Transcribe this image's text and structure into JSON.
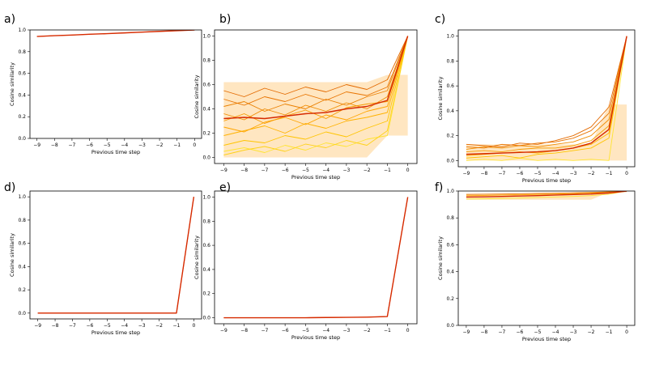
{
  "chart_data": [
    {
      "type": "line",
      "panel_label": "a)",
      "xlabel": "Previous time step",
      "ylabel": "Cosine similarity",
      "x": [
        -9,
        -8,
        -7,
        -6,
        -5,
        -4,
        -3,
        -2,
        -1,
        0
      ],
      "xticks": [
        -9,
        -8,
        -7,
        -6,
        -5,
        -4,
        -3,
        -2,
        -1,
        0
      ],
      "yticks": [
        0.0,
        0.2,
        0.4,
        0.6,
        0.8,
        1.0
      ],
      "ytick_labels": [
        "0.0",
        "0.2",
        "0.4",
        "0.6",
        "0.8",
        "1.0"
      ],
      "xlim": [
        -9.4,
        0.4
      ],
      "ylim": [
        0.0,
        1.0
      ],
      "band": null,
      "series": [
        {
          "values": [
            0.94,
            0.947,
            0.953,
            0.96,
            0.966,
            0.973,
            0.98,
            0.987,
            0.993,
            1.0
          ],
          "color": "#ff7f0e",
          "kind": "individual"
        },
        {
          "values": [
            0.94,
            0.947,
            0.953,
            0.96,
            0.966,
            0.973,
            0.98,
            0.987,
            0.993,
            1.0
          ],
          "color": "#d62a00",
          "kind": "mean"
        }
      ]
    },
    {
      "type": "line",
      "panel_label": "b)",
      "xlabel": "Previous time step",
      "ylabel": "Cosine similarity",
      "x": [
        -9,
        -8,
        -7,
        -6,
        -5,
        -4,
        -3,
        -2,
        -1,
        0
      ],
      "xticks": [
        -9,
        -8,
        -7,
        -6,
        -5,
        -4,
        -3,
        -2,
        -1,
        0
      ],
      "yticks": [
        0.0,
        0.2,
        0.4,
        0.6,
        0.8,
        1.0
      ],
      "ytick_labels": [
        "0.0",
        "0.2",
        "0.4",
        "0.6",
        "0.8",
        "1.0"
      ],
      "xlim": [
        -9.45,
        0.45
      ],
      "ylim": [
        -0.05,
        1.05
      ],
      "band": {
        "lo": 0.0,
        "hi": 0.62,
        "end_lo": 0.18,
        "end_hi": 0.68
      },
      "series": [
        {
          "values": [
            0.05,
            0.08,
            0.04,
            0.1,
            0.06,
            0.12,
            0.09,
            0.15,
            0.18,
            1.0
          ],
          "color": "#ffe433",
          "kind": "individual"
        },
        {
          "values": [
            0.02,
            0.06,
            0.09,
            0.05,
            0.11,
            0.08,
            0.14,
            0.1,
            0.22,
            1.0
          ],
          "color": "#ffd21a",
          "kind": "individual"
        },
        {
          "values": [
            0.1,
            0.14,
            0.12,
            0.18,
            0.15,
            0.21,
            0.17,
            0.24,
            0.3,
            1.0
          ],
          "color": "#ffc400",
          "kind": "individual"
        },
        {
          "values": [
            0.18,
            0.22,
            0.26,
            0.2,
            0.28,
            0.24,
            0.3,
            0.33,
            0.37,
            1.0
          ],
          "color": "#ffb200",
          "kind": "individual"
        },
        {
          "values": [
            0.25,
            0.21,
            0.29,
            0.33,
            0.27,
            0.35,
            0.31,
            0.38,
            0.42,
            1.0
          ],
          "color": "#ffa500",
          "kind": "individual"
        },
        {
          "values": [
            0.3,
            0.36,
            0.28,
            0.34,
            0.39,
            0.32,
            0.41,
            0.44,
            0.46,
            1.0
          ],
          "color": "#f59a00",
          "kind": "individual"
        },
        {
          "values": [
            0.36,
            0.31,
            0.4,
            0.35,
            0.43,
            0.38,
            0.45,
            0.4,
            0.5,
            1.0
          ],
          "color": "#f08c00",
          "kind": "individual"
        },
        {
          "values": [
            0.42,
            0.46,
            0.38,
            0.44,
            0.4,
            0.48,
            0.43,
            0.5,
            0.55,
            1.0
          ],
          "color": "#ea8000",
          "kind": "individual"
        },
        {
          "values": [
            0.48,
            0.43,
            0.5,
            0.46,
            0.52,
            0.47,
            0.54,
            0.51,
            0.58,
            1.0
          ],
          "color": "#e87400",
          "kind": "individual"
        },
        {
          "values": [
            0.55,
            0.5,
            0.57,
            0.52,
            0.58,
            0.54,
            0.6,
            0.56,
            0.64,
            1.0
          ],
          "color": "#e36a00",
          "kind": "individual"
        },
        {
          "values": [
            0.32,
            0.33,
            0.32,
            0.34,
            0.36,
            0.37,
            0.4,
            0.42,
            0.47,
            1.0
          ],
          "color": "#d62a00",
          "kind": "mean"
        }
      ]
    },
    {
      "type": "line",
      "panel_label": "c)",
      "xlabel": "Previous time step",
      "ylabel": "Cosine similarity",
      "x": [
        -9,
        -8,
        -7,
        -6,
        -5,
        -4,
        -3,
        -2,
        -1,
        0
      ],
      "xticks": [
        -9,
        -8,
        -7,
        -6,
        -5,
        -4,
        -3,
        -2,
        -1,
        0
      ],
      "yticks": [
        0.0,
        0.2,
        0.4,
        0.6,
        0.8,
        1.0
      ],
      "ytick_labels": [
        "0.0",
        "0.2",
        "0.4",
        "0.6",
        "0.8",
        "1.0"
      ],
      "xlim": [
        -9.45,
        0.45
      ],
      "ylim": [
        -0.05,
        1.05
      ],
      "band": {
        "lo": 0.0,
        "hi": 0.13,
        "end_lo": 0.0,
        "end_hi": 0.45
      },
      "series": [
        {
          "values": [
            0.0,
            0.01,
            0.0,
            0.02,
            0.0,
            0.01,
            0.0,
            0.01,
            0.0,
            1.0
          ],
          "color": "#ffe433",
          "kind": "individual"
        },
        {
          "values": [
            0.02,
            0.03,
            0.04,
            0.02,
            0.05,
            0.06,
            0.08,
            0.1,
            0.18,
            1.0
          ],
          "color": "#ffc400",
          "kind": "individual"
        },
        {
          "values": [
            0.04,
            0.05,
            0.06,
            0.07,
            0.06,
            0.08,
            0.1,
            0.13,
            0.22,
            1.0
          ],
          "color": "#ffb200",
          "kind": "individual"
        },
        {
          "values": [
            0.07,
            0.08,
            0.07,
            0.09,
            0.1,
            0.1,
            0.12,
            0.16,
            0.28,
            1.0
          ],
          "color": "#f59a00",
          "kind": "individual"
        },
        {
          "values": [
            0.09,
            0.11,
            0.1,
            0.12,
            0.11,
            0.13,
            0.15,
            0.2,
            0.33,
            1.0
          ],
          "color": "#f08c00",
          "kind": "individual"
        },
        {
          "values": [
            0.11,
            0.1,
            0.13,
            0.12,
            0.14,
            0.15,
            0.18,
            0.24,
            0.38,
            1.0
          ],
          "color": "#e87400",
          "kind": "individual"
        },
        {
          "values": [
            0.13,
            0.12,
            0.11,
            0.14,
            0.13,
            0.16,
            0.2,
            0.27,
            0.43,
            1.0
          ],
          "color": "#e36a00",
          "kind": "individual"
        },
        {
          "values": [
            0.05,
            0.055,
            0.06,
            0.065,
            0.07,
            0.08,
            0.1,
            0.14,
            0.25,
            1.0
          ],
          "color": "#d62a00",
          "kind": "mean"
        }
      ]
    },
    {
      "type": "line",
      "panel_label": "d)",
      "xlabel": "Previous time step",
      "ylabel": "Cosine similarity",
      "x": [
        -9,
        -8,
        -7,
        -6,
        -5,
        -4,
        -3,
        -2,
        -1,
        0
      ],
      "xticks": [
        -9,
        -8,
        -7,
        -6,
        -5,
        -4,
        -3,
        -2,
        -1,
        0
      ],
      "yticks": [
        0.0,
        0.2,
        0.4,
        0.6,
        0.8,
        1.0
      ],
      "ytick_labels": [
        "0.0",
        "0.2",
        "0.4",
        "0.6",
        "0.8",
        "1.0"
      ],
      "xlim": [
        -9.45,
        0.45
      ],
      "ylim": [
        -0.05,
        1.05
      ],
      "band": null,
      "series": [
        {
          "values": [
            0.0,
            0.0,
            0.0,
            0.0,
            0.0,
            0.0,
            0.0,
            0.0,
            0.0,
            1.0
          ],
          "color": "#ff7f0e",
          "kind": "individual"
        },
        {
          "values": [
            0.0,
            0.0,
            0.0,
            0.0,
            0.0,
            0.0,
            0.0,
            0.0,
            0.0,
            1.0
          ],
          "color": "#d62a00",
          "kind": "mean"
        }
      ]
    },
    {
      "type": "line",
      "panel_label": "e)",
      "xlabel": "Previous time step",
      "ylabel": "Cosine similarity",
      "x": [
        -9,
        -8,
        -7,
        -6,
        -5,
        -4,
        -3,
        -2,
        -1,
        0
      ],
      "xticks": [
        -9,
        -8,
        -7,
        -6,
        -5,
        -4,
        -3,
        -2,
        -1,
        0
      ],
      "yticks": [
        0.0,
        0.2,
        0.4,
        0.6,
        0.8,
        1.0
      ],
      "ytick_labels": [
        "0.0",
        "0.2",
        "0.4",
        "0.6",
        "0.8",
        "1.0"
      ],
      "xlim": [
        -9.45,
        0.45
      ],
      "ylim": [
        -0.05,
        1.05
      ],
      "band": null,
      "series": [
        {
          "values": [
            0.0,
            0.0,
            0.0,
            0.0,
            0.0,
            0.002,
            0.003,
            0.005,
            0.01,
            1.0
          ],
          "color": "#ff7f0e",
          "kind": "individual"
        },
        {
          "values": [
            0.0,
            0.0,
            0.0,
            0.0,
            0.0,
            0.002,
            0.003,
            0.005,
            0.01,
            1.0
          ],
          "color": "#d62a00",
          "kind": "mean"
        }
      ]
    },
    {
      "type": "line",
      "panel_label": "f)",
      "xlabel": "Previous time step",
      "ylabel": "Cosine similarity",
      "x": [
        -9,
        -8,
        -7,
        -6,
        -5,
        -4,
        -3,
        -2,
        -1,
        0
      ],
      "xticks": [
        -9,
        -8,
        -7,
        -6,
        -5,
        -4,
        -3,
        -2,
        -1,
        0
      ],
      "yticks": [
        0.0,
        0.2,
        0.4,
        0.6,
        0.8,
        1.0
      ],
      "ytick_labels": [
        "0.0",
        "0.2",
        "0.4",
        "0.6",
        "0.8",
        "1.0"
      ],
      "xlim": [
        -9.45,
        0.45
      ],
      "ylim": [
        0.0,
        1.0
      ],
      "band": {
        "lo": 0.935,
        "hi": 0.98,
        "end_lo": 0.99,
        "end_hi": 1.0
      },
      "series": [
        {
          "values": [
            0.94,
            0.942,
            0.945,
            0.948,
            0.952,
            0.956,
            0.96,
            0.966,
            0.976,
            1.0
          ],
          "color": "#ffe433",
          "kind": "individual"
        },
        {
          "values": [
            0.965,
            0.967,
            0.97,
            0.972,
            0.975,
            0.978,
            0.981,
            0.985,
            0.99,
            1.0
          ],
          "color": "#ffa500",
          "kind": "individual"
        },
        {
          "values": [
            0.975,
            0.976,
            0.978,
            0.98,
            0.982,
            0.984,
            0.987,
            0.99,
            0.994,
            1.0
          ],
          "color": "#e87400",
          "kind": "individual"
        },
        {
          "values": [
            0.955,
            0.957,
            0.96,
            0.963,
            0.966,
            0.97,
            0.974,
            0.978,
            0.985,
            1.0
          ],
          "color": "#d62a00",
          "kind": "mean"
        }
      ]
    }
  ]
}
